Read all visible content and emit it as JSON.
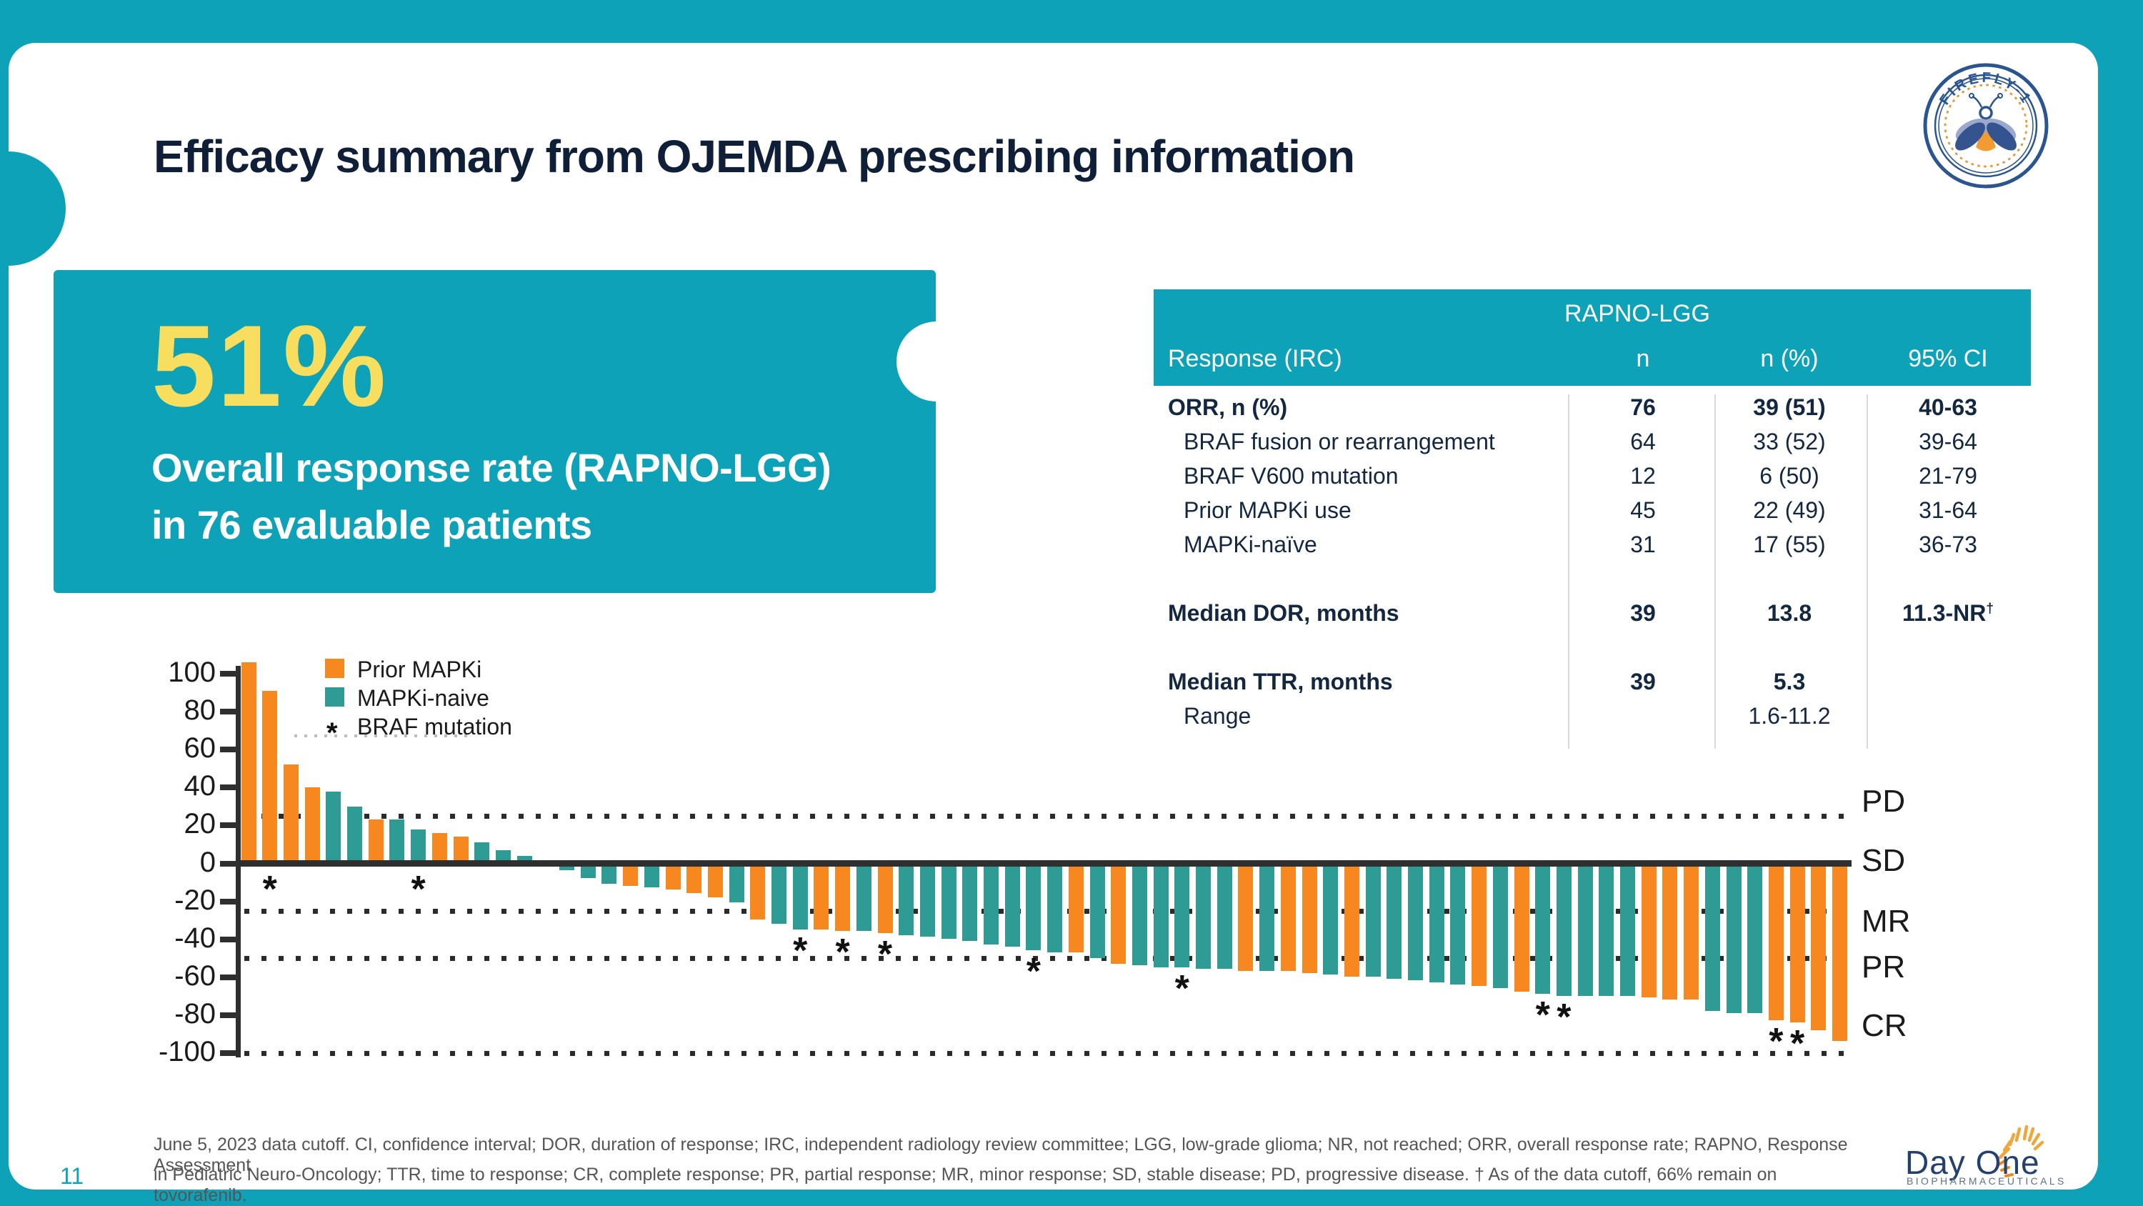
{
  "slide": {
    "title": "Efficacy summary from OJEMDA prescribing information",
    "page_number": "11",
    "footnote_line1": "June 5, 2023 data cutoff. CI, confidence interval; DOR, duration of response; IRC, independent radiology review committee; LGG, low-grade glioma; NR, not reached; ORR, overall response rate; RAPNO, Response Assessment",
    "footnote_line2": "in Pediatric Neuro-Oncology; TTR, time to response; CR, complete response; PR, partial response; MR, minor response; SD, stable disease; PD, progressive disease. † As of the data cutoff, 66% remain on tovorafenib.",
    "colors": {
      "slide_teal": "#0EA2B8",
      "bar_orange": "#F6881F",
      "bar_teal": "#2E9C94",
      "navy_text": "#101F38",
      "stat_yellow": "#F8DE5E",
      "footer_gray": "#555555"
    }
  },
  "callout": {
    "stat": "51%",
    "line1": "Overall response rate (RAPNO-LGG)",
    "line2": "in 76 evaluable patients"
  },
  "table": {
    "group_header": "RAPNO-LGG",
    "columns": [
      "Response (IRC)",
      "n",
      "n (%)",
      "95% CI"
    ],
    "rows": [
      {
        "label": "ORR, n (%)",
        "n": "76",
        "n_pct": "39 (51)",
        "ci": "40-63",
        "bold": true,
        "indent": false,
        "ci_dagger": false
      },
      {
        "label": "BRAF fusion or rearrangement",
        "n": "64",
        "n_pct": "33 (52)",
        "ci": "39-64",
        "bold": false,
        "indent": true,
        "ci_dagger": false
      },
      {
        "label": "BRAF V600 mutation",
        "n": "12",
        "n_pct": "6 (50)",
        "ci": "21-79",
        "bold": false,
        "indent": true,
        "ci_dagger": false
      },
      {
        "label": "Prior MAPKi use",
        "n": "45",
        "n_pct": "22 (49)",
        "ci": "31-64",
        "bold": false,
        "indent": true,
        "ci_dagger": false
      },
      {
        "label": "MAPKi-naïve",
        "n": "31",
        "n_pct": "17 (55)",
        "ci": "36-73",
        "bold": false,
        "indent": true,
        "ci_dagger": false
      },
      {
        "label": "Median DOR, months",
        "n": "39",
        "n_pct": "13.8",
        "ci": "11.3-NR",
        "bold": true,
        "indent": false,
        "ci_dagger": true
      },
      {
        "label": "Median TTR, months",
        "n": "39",
        "n_pct": "5.3",
        "ci": "",
        "bold": true,
        "indent": false,
        "ci_dagger": false
      },
      {
        "label": "Range",
        "n": "",
        "n_pct": "1.6-11.2",
        "ci": "",
        "bold": false,
        "indent": true,
        "ci_dagger": false
      }
    ]
  },
  "chart_data": {
    "type": "bar",
    "subtype": "waterfall",
    "title": "",
    "xlabel": "",
    "ylabel": "",
    "ylim": [
      -100,
      110
    ],
    "grid": false,
    "yticks": [
      100,
      80,
      60,
      40,
      20,
      0,
      -20,
      -40,
      -60,
      -80,
      -100
    ],
    "legend": [
      {
        "label": "Prior MAPKi",
        "color": "#F6881F",
        "marker": "square"
      },
      {
        "label": "MAPKi-naive",
        "color": "#2E9C94",
        "marker": "square"
      },
      {
        "label": "BRAF mutation",
        "color": "#111111",
        "marker": "*"
      }
    ],
    "threshold_lines": [
      25,
      -25,
      -50,
      -100
    ],
    "response_labels": [
      {
        "text": "PD",
        "y": 32
      },
      {
        "text": "SD",
        "y": 1
      },
      {
        "text": "MR",
        "y": -31
      },
      {
        "text": "PR",
        "y": -55
      },
      {
        "text": "CR",
        "y": -86
      }
    ],
    "bars": [
      {
        "value": 106,
        "group": "prior",
        "star": false
      },
      {
        "value": 91,
        "group": "prior",
        "star": true
      },
      {
        "value": 52,
        "group": "prior",
        "star": false
      },
      {
        "value": 40,
        "group": "prior",
        "star": false
      },
      {
        "value": 38,
        "group": "naive",
        "star": false
      },
      {
        "value": 30,
        "group": "naive",
        "star": false
      },
      {
        "value": 23,
        "group": "prior",
        "star": false
      },
      {
        "value": 23,
        "group": "naive",
        "star": false
      },
      {
        "value": 18,
        "group": "naive",
        "star": true
      },
      {
        "value": 16,
        "group": "prior",
        "star": false
      },
      {
        "value": 14,
        "group": "prior",
        "star": false
      },
      {
        "value": 11,
        "group": "naive",
        "star": false
      },
      {
        "value": 7,
        "group": "naive",
        "star": false
      },
      {
        "value": 4,
        "group": "naive",
        "star": false
      },
      {
        "value": 1,
        "group": "naive",
        "star": false
      },
      {
        "value": -2,
        "group": "naive",
        "star": false
      },
      {
        "value": -6,
        "group": "naive",
        "star": false
      },
      {
        "value": -9,
        "group": "naive",
        "star": false
      },
      {
        "value": -10,
        "group": "prior",
        "star": false
      },
      {
        "value": -11,
        "group": "naive",
        "star": false
      },
      {
        "value": -12,
        "group": "prior",
        "star": false
      },
      {
        "value": -14,
        "group": "prior",
        "star": false
      },
      {
        "value": -16,
        "group": "prior",
        "star": false
      },
      {
        "value": -19,
        "group": "naive",
        "star": false
      },
      {
        "value": -28,
        "group": "prior",
        "star": false
      },
      {
        "value": -30,
        "group": "naive",
        "star": false
      },
      {
        "value": -33,
        "group": "naive",
        "star": true
      },
      {
        "value": -33,
        "group": "prior",
        "star": false
      },
      {
        "value": -34,
        "group": "prior",
        "star": true
      },
      {
        "value": -34,
        "group": "naive",
        "star": false
      },
      {
        "value": -35,
        "group": "prior",
        "star": true
      },
      {
        "value": -36,
        "group": "naive",
        "star": false
      },
      {
        "value": -37,
        "group": "naive",
        "star": false
      },
      {
        "value": -38,
        "group": "naive",
        "star": false
      },
      {
        "value": -39,
        "group": "naive",
        "star": false
      },
      {
        "value": -41,
        "group": "naive",
        "star": false
      },
      {
        "value": -42,
        "group": "naive",
        "star": false
      },
      {
        "value": -44,
        "group": "naive",
        "star": true
      },
      {
        "value": -45,
        "group": "naive",
        "star": false
      },
      {
        "value": -45,
        "group": "prior",
        "star": false
      },
      {
        "value": -48,
        "group": "naive",
        "star": false
      },
      {
        "value": -51,
        "group": "prior",
        "star": false
      },
      {
        "value": -52,
        "group": "naive",
        "star": false
      },
      {
        "value": -53,
        "group": "naive",
        "star": false
      },
      {
        "value": -53,
        "group": "naive",
        "star": true
      },
      {
        "value": -54,
        "group": "naive",
        "star": false
      },
      {
        "value": -54,
        "group": "naive",
        "star": false
      },
      {
        "value": -55,
        "group": "prior",
        "star": false
      },
      {
        "value": -55,
        "group": "naive",
        "star": false
      },
      {
        "value": -55,
        "group": "prior",
        "star": false
      },
      {
        "value": -56,
        "group": "prior",
        "star": false
      },
      {
        "value": -57,
        "group": "naive",
        "star": false
      },
      {
        "value": -58,
        "group": "prior",
        "star": false
      },
      {
        "value": -58,
        "group": "naive",
        "star": false
      },
      {
        "value": -59,
        "group": "naive",
        "star": false
      },
      {
        "value": -60,
        "group": "naive",
        "star": false
      },
      {
        "value": -61,
        "group": "naive",
        "star": false
      },
      {
        "value": -62,
        "group": "naive",
        "star": false
      },
      {
        "value": -63,
        "group": "prior",
        "star": false
      },
      {
        "value": -64,
        "group": "naive",
        "star": false
      },
      {
        "value": -66,
        "group": "prior",
        "star": false
      },
      {
        "value": -67,
        "group": "naive",
        "star": true
      },
      {
        "value": -68,
        "group": "naive",
        "star": true
      },
      {
        "value": -68,
        "group": "naive",
        "star": false
      },
      {
        "value": -68,
        "group": "naive",
        "star": false
      },
      {
        "value": -68,
        "group": "naive",
        "star": false
      },
      {
        "value": -69,
        "group": "prior",
        "star": false
      },
      {
        "value": -70,
        "group": "prior",
        "star": false
      },
      {
        "value": -70,
        "group": "prior",
        "star": false
      },
      {
        "value": -76,
        "group": "naive",
        "star": false
      },
      {
        "value": -77,
        "group": "naive",
        "star": false
      },
      {
        "value": -77,
        "group": "naive",
        "star": false
      },
      {
        "value": -81,
        "group": "prior",
        "star": true
      },
      {
        "value": -82,
        "group": "prior",
        "star": true
      },
      {
        "value": -86,
        "group": "prior",
        "star": false
      },
      {
        "value": -92,
        "group": "prior",
        "star": false
      }
    ]
  },
  "logos": {
    "firefly_text": "FIREFLY-1",
    "dayone_name": "Day One",
    "dayone_sub": "BIOPHARMACEUTICALS"
  }
}
